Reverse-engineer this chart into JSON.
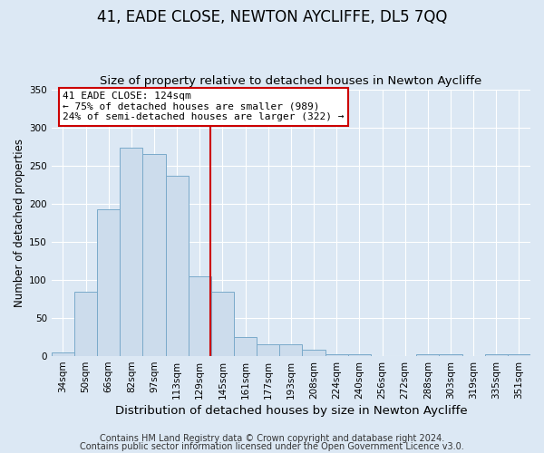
{
  "title": "41, EADE CLOSE, NEWTON AYCLIFFE, DL5 7QQ",
  "subtitle": "Size of property relative to detached houses in Newton Aycliffe",
  "xlabel": "Distribution of detached houses by size in Newton Aycliffe",
  "ylabel": "Number of detached properties",
  "bar_labels": [
    "34sqm",
    "50sqm",
    "66sqm",
    "82sqm",
    "97sqm",
    "113sqm",
    "129sqm",
    "145sqm",
    "161sqm",
    "177sqm",
    "193sqm",
    "208sqm",
    "224sqm",
    "240sqm",
    "256sqm",
    "272sqm",
    "288sqm",
    "303sqm",
    "319sqm",
    "335sqm",
    "351sqm"
  ],
  "bar_values": [
    5,
    84,
    193,
    274,
    265,
    236,
    105,
    84,
    25,
    15,
    15,
    8,
    3,
    3,
    0,
    0,
    2,
    2,
    0,
    2,
    3
  ],
  "bar_color": "#ccdcec",
  "bar_edge_color": "#7aaaca",
  "ylim": [
    0,
    350
  ],
  "red_line_index": 6.45,
  "annotation_text": "41 EADE CLOSE: 124sqm\n← 75% of detached houses are smaller (989)\n24% of semi-detached houses are larger (322) →",
  "annotation_box_facecolor": "#ffffff",
  "annotation_box_edgecolor": "#cc0000",
  "footer_line1": "Contains HM Land Registry data © Crown copyright and database right 2024.",
  "footer_line2": "Contains public sector information licensed under the Open Government Licence v3.0.",
  "background_color": "#dce8f4",
  "plot_background_color": "#dce8f4",
  "title_fontsize": 12,
  "subtitle_fontsize": 9.5,
  "xlabel_fontsize": 9.5,
  "ylabel_fontsize": 8.5,
  "tick_fontsize": 7.5,
  "annotation_fontsize": 8,
  "footer_fontsize": 7
}
